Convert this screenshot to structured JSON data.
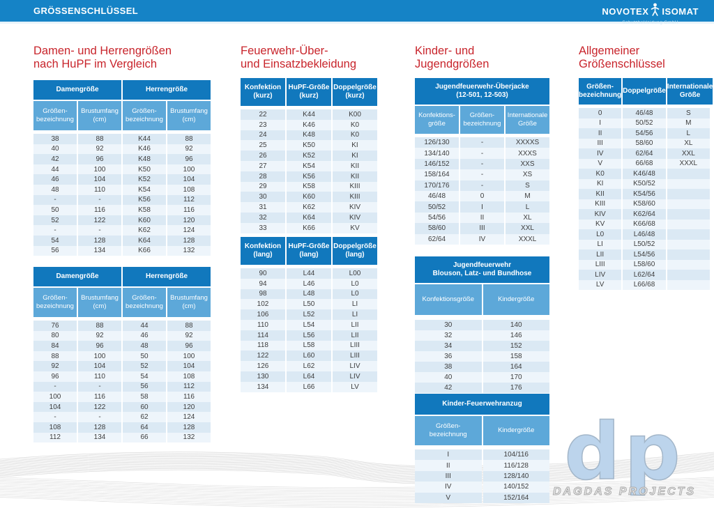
{
  "header": {
    "title": "GRÖSSENSCHLÜSSEL",
    "brand_word1": "NOVOTEX",
    "brand_word2": "ISOMAT",
    "brand_sub": "Schutzbekleidung GmbH"
  },
  "sections": {
    "damen": {
      "title_line1": "Damen- und Herrengrößen",
      "title_line2": "nach HuPF im Vergleich",
      "table1": {
        "group_headers": [
          "Damengröße",
          "Herrengröße"
        ],
        "col_headers": [
          "Größen-\nbezeichnung",
          "Brustumfang\n(cm)",
          "Größen-\nbezeichnung",
          "Brustumfang\n(cm)"
        ],
        "rows": [
          [
            "38",
            "88",
            "K44",
            "88"
          ],
          [
            "40",
            "92",
            "K46",
            "92"
          ],
          [
            "42",
            "96",
            "K48",
            "96"
          ],
          [
            "44",
            "100",
            "K50",
            "100"
          ],
          [
            "46",
            "104",
            "K52",
            "104"
          ],
          [
            "48",
            "110",
            "K54",
            "108"
          ],
          [
            "-",
            "-",
            "K56",
            "112"
          ],
          [
            "50",
            "116",
            "K58",
            "116"
          ],
          [
            "52",
            "122",
            "K60",
            "120"
          ],
          [
            "-",
            "-",
            "K62",
            "124"
          ],
          [
            "54",
            "128",
            "K64",
            "128"
          ],
          [
            "56",
            "134",
            "K66",
            "132"
          ]
        ]
      },
      "table2": {
        "group_headers": [
          "Damengröße",
          "Herrengröße"
        ],
        "col_headers": [
          "Größen-\nbezeichnung",
          "Brustumfang\n(cm)",
          "Größen-\nbezeichnung",
          "Brustumfang\n(cm)"
        ],
        "rows": [
          [
            "76",
            "88",
            "44",
            "88"
          ],
          [
            "80",
            "92",
            "46",
            "92"
          ],
          [
            "84",
            "96",
            "48",
            "96"
          ],
          [
            "88",
            "100",
            "50",
            "100"
          ],
          [
            "92",
            "104",
            "52",
            "104"
          ],
          [
            "96",
            "110",
            "54",
            "108"
          ],
          [
            "-",
            "-",
            "56",
            "112"
          ],
          [
            "100",
            "116",
            "58",
            "116"
          ],
          [
            "104",
            "122",
            "60",
            "120"
          ],
          [
            "-",
            "-",
            "62",
            "124"
          ],
          [
            "108",
            "128",
            "64",
            "128"
          ],
          [
            "112",
            "134",
            "66",
            "132"
          ]
        ]
      }
    },
    "feuerwehr": {
      "title_line1": "Feuerwehr-Über-",
      "title_line2": "und Einsatzbekleidung",
      "table_kurz": {
        "col_headers": [
          "Konfektion\n(kurz)",
          "HuPF-Größe\n(kurz)",
          "Doppelgröße\n(kurz)"
        ],
        "rows": [
          [
            "22",
            "K44",
            "K00"
          ],
          [
            "23",
            "K46",
            "K0"
          ],
          [
            "24",
            "K48",
            "K0"
          ],
          [
            "25",
            "K50",
            "KI"
          ],
          [
            "26",
            "K52",
            "KI"
          ],
          [
            "27",
            "K54",
            "KII"
          ],
          [
            "28",
            "K56",
            "KII"
          ],
          [
            "29",
            "K58",
            "KIII"
          ],
          [
            "30",
            "K60",
            "KIII"
          ],
          [
            "31",
            "K62",
            "KIV"
          ],
          [
            "32",
            "K64",
            "KIV"
          ],
          [
            "33",
            "K66",
            "KV"
          ]
        ]
      },
      "table_lang": {
        "col_headers": [
          "Konfektion\n(lang)",
          "HuPF-Größe\n(lang)",
          "Doppelgröße\n(lang)"
        ],
        "rows": [
          [
            "90",
            "L44",
            "L00"
          ],
          [
            "94",
            "L46",
            "L0"
          ],
          [
            "98",
            "L48",
            "L0"
          ],
          [
            "102",
            "L50",
            "LI"
          ],
          [
            "106",
            "L52",
            "LI"
          ],
          [
            "110",
            "L54",
            "LII"
          ],
          [
            "114",
            "L56",
            "LII"
          ],
          [
            "118",
            "L58",
            "LIII"
          ],
          [
            "122",
            "L60",
            "LIII"
          ],
          [
            "126",
            "L62",
            "LIV"
          ],
          [
            "130",
            "L64",
            "LIV"
          ],
          [
            "134",
            "L66",
            "LV"
          ]
        ]
      }
    },
    "kinder": {
      "title_line1": "Kinder- und",
      "title_line2": "Jugendgrößen",
      "ueberjacke": {
        "group_header": "Jugendfeuerwehr-Überjacke\n(12-501, 12-503)",
        "col_headers": [
          "Konfektions-\ngröße",
          "Größen-\nbezeichnung",
          "Internationale\nGröße"
        ],
        "rows": [
          [
            "126/130",
            "-",
            "XXXXS"
          ],
          [
            "134/140",
            "-",
            "XXXS"
          ],
          [
            "146/152",
            "-",
            "XXS"
          ],
          [
            "158/164",
            "-",
            "XS"
          ],
          [
            "170/176",
            "-",
            "S"
          ],
          [
            "46/48",
            "0",
            "M"
          ],
          [
            "50/52",
            "I",
            "L"
          ],
          [
            "54/56",
            "II",
            "XL"
          ],
          [
            "58/60",
            "III",
            "XXL"
          ],
          [
            "62/64",
            "IV",
            "XXXL"
          ]
        ]
      },
      "blouson": {
        "group_header": "Jugendfeuerwehr\nBlouson, Latz- und Bundhose",
        "col_headers": [
          "Konfektionsgröße",
          "Kindergröße"
        ],
        "rows": [
          [
            "30",
            "140"
          ],
          [
            "32",
            "146"
          ],
          [
            "34",
            "152"
          ],
          [
            "36",
            "158"
          ],
          [
            "38",
            "164"
          ],
          [
            "40",
            "170"
          ],
          [
            "42",
            "176"
          ]
        ]
      },
      "anzug": {
        "group_header": "Kinder-Feuerwehranzug",
        "col_headers": [
          "Größen-\nbezeichnung",
          "Kindergröße"
        ],
        "rows": [
          [
            "I",
            "104/116"
          ],
          [
            "II",
            "116/128"
          ],
          [
            "III",
            "128/140"
          ],
          [
            "IV",
            "140/152"
          ],
          [
            "V",
            "152/164"
          ]
        ]
      }
    },
    "allgemein": {
      "title_line1": "Allgemeiner",
      "title_line2": "Größenschlüssel",
      "table": {
        "col_headers": [
          "Größen-\nbezeichnung",
          "Doppelgröße",
          "Internationale\nGröße"
        ],
        "rows": [
          [
            "0",
            "46/48",
            "S"
          ],
          [
            "I",
            "50/52",
            "M"
          ],
          [
            "II",
            "54/56",
            "L"
          ],
          [
            "III",
            "58/60",
            "XL"
          ],
          [
            "IV",
            "62/64",
            "XXL"
          ],
          [
            "V",
            "66/68",
            "XXXL"
          ],
          [
            "K0",
            "K46/48",
            ""
          ],
          [
            "KI",
            "K50/52",
            ""
          ],
          [
            "KII",
            "K54/56",
            ""
          ],
          [
            "KIII",
            "K58/60",
            ""
          ],
          [
            "KIV",
            "K62/64",
            ""
          ],
          [
            "KV",
            "K66/68",
            ""
          ],
          [
            "L0",
            "L46/48",
            ""
          ],
          [
            "LI",
            "L50/52",
            ""
          ],
          [
            "LII",
            "L54/56",
            ""
          ],
          [
            "LIII",
            "L58/60",
            ""
          ],
          [
            "LIV",
            "L62/64",
            ""
          ],
          [
            "LV",
            "L66/68",
            ""
          ]
        ]
      }
    }
  },
  "watermark": {
    "logo": "dp",
    "text": "DAGDAS PROJECTS"
  },
  "colors": {
    "topbar": "#1583c6",
    "table_header": "#1178bd",
    "table_subheader": "#5da8d9",
    "row_odd": "#dbe9f4",
    "row_even": "#eef5fb",
    "title_red": "#c8242b",
    "watermark_blue": "#bcd4ec"
  }
}
